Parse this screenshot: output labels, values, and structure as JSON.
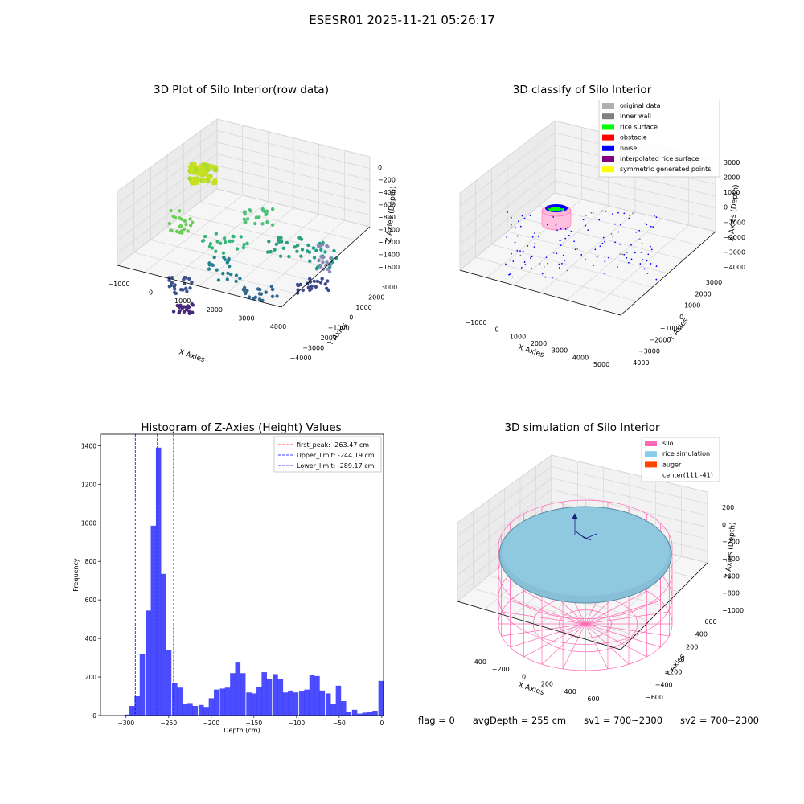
{
  "suptitle": "ESESR01 2025-11-21 05:26:17",
  "panels": {
    "raw": {
      "title": "3D Plot of Silo Interior(row data)",
      "xlabel": "X Axies",
      "ylabel": "Y Axies",
      "zlabel": "Z Axies (Depth)",
      "xticks": [
        "−1000",
        "0",
        "1000",
        "2000",
        "3000",
        "4000"
      ],
      "yticks": [
        "3000",
        "2000",
        "1000",
        "0",
        "−1000",
        "−2000",
        "−3000",
        "−4000"
      ],
      "zticks": [
        "0",
        "−200",
        "−400",
        "−600",
        "−800",
        "−1000",
        "−1200",
        "−1400",
        "−1600"
      ]
    },
    "classify": {
      "title": "3D classify of Silo Interior",
      "xlabel": "X Axies",
      "ylabel": "Y Axies",
      "zlabel": "Z Axies (Depth)",
      "xticks": [
        "−1000",
        "0",
        "1000",
        "2000",
        "3000",
        "4000",
        "5000"
      ],
      "yticks": [
        "3000",
        "2000",
        "1000",
        "0",
        "−1000",
        "−2000",
        "−3000",
        "−4000"
      ],
      "zticks": [
        "3000",
        "2000",
        "1000",
        "0",
        "−1000",
        "−2000",
        "−3000",
        "−4000"
      ],
      "legend": [
        {
          "label": "original data",
          "color": "#b0b0b0"
        },
        {
          "label": "inner wall",
          "color": "#808080"
        },
        {
          "label": "rice surface",
          "color": "#00ff00"
        },
        {
          "label": "obstacle",
          "color": "#ff0000"
        },
        {
          "label": "noise",
          "color": "#0000ff"
        },
        {
          "label": "interpolated rice surface",
          "color": "#800080"
        },
        {
          "label": "symmetric generated points",
          "color": "#ffff00"
        }
      ]
    },
    "simulation": {
      "title": "3D simulation of Silo Interior",
      "xlabel": "X Axies",
      "ylabel": "Y Axies",
      "zlabel": "Z Axies (Depth)",
      "xticks": [
        "−400",
        "−200",
        "0",
        "200",
        "400",
        "600"
      ],
      "yticks": [
        "600",
        "400",
        "200",
        "0",
        "−200",
        "−400",
        "−600"
      ],
      "zticks": [
        "200",
        "0",
        "−200",
        "−400",
        "−600",
        "−800",
        "−1000"
      ],
      "legend": [
        {
          "label": "silo",
          "color": "#ff69b4"
        },
        {
          "label": "rice simulation",
          "color": "#87ceeb"
        },
        {
          "label": "auger",
          "color": "#ff4500"
        },
        {
          "label": "center(111,-41)",
          "color": ""
        }
      ]
    }
  },
  "chart_data": [
    {
      "type": "bar",
      "title": "Histogram of Z-Axies (Height) Values",
      "xlabel": "Depth (cm)",
      "ylabel": "Frequency",
      "color": "#0000ff",
      "xlim": [
        -330,
        2
      ],
      "ylim": [
        0,
        1460
      ],
      "xticks": [
        -300,
        -250,
        -200,
        -150,
        -100,
        -50,
        0
      ],
      "yticks": [
        0,
        200,
        400,
        600,
        800,
        1000,
        1200,
        1400
      ],
      "bin_width": 6.2,
      "bins": [
        {
          "x": -302,
          "v": 5
        },
        {
          "x": -296,
          "v": 50
        },
        {
          "x": -290,
          "v": 100
        },
        {
          "x": -284,
          "v": 320
        },
        {
          "x": -277,
          "v": 545
        },
        {
          "x": -271,
          "v": 985
        },
        {
          "x": -265,
          "v": 1390
        },
        {
          "x": -259,
          "v": 735
        },
        {
          "x": -253,
          "v": 340
        },
        {
          "x": -246,
          "v": 170
        },
        {
          "x": -240,
          "v": 145
        },
        {
          "x": -234,
          "v": 60
        },
        {
          "x": -228,
          "v": 65
        },
        {
          "x": -222,
          "v": 50
        },
        {
          "x": -215,
          "v": 55
        },
        {
          "x": -209,
          "v": 45
        },
        {
          "x": -203,
          "v": 90
        },
        {
          "x": -197,
          "v": 135
        },
        {
          "x": -190,
          "v": 140
        },
        {
          "x": -184,
          "v": 145
        },
        {
          "x": -178,
          "v": 220
        },
        {
          "x": -172,
          "v": 275
        },
        {
          "x": -166,
          "v": 220
        },
        {
          "x": -159,
          "v": 120
        },
        {
          "x": -153,
          "v": 115
        },
        {
          "x": -147,
          "v": 150
        },
        {
          "x": -141,
          "v": 225
        },
        {
          "x": -135,
          "v": 190
        },
        {
          "x": -128,
          "v": 215
        },
        {
          "x": -122,
          "v": 190
        },
        {
          "x": -116,
          "v": 120
        },
        {
          "x": -110,
          "v": 130
        },
        {
          "x": -104,
          "v": 120
        },
        {
          "x": -97,
          "v": 125
        },
        {
          "x": -91,
          "v": 135
        },
        {
          "x": -85,
          "v": 210
        },
        {
          "x": -79,
          "v": 205
        },
        {
          "x": -73,
          "v": 130
        },
        {
          "x": -66,
          "v": 115
        },
        {
          "x": -60,
          "v": 60
        },
        {
          "x": -54,
          "v": 155
        },
        {
          "x": -48,
          "v": 75
        },
        {
          "x": -42,
          "v": 20
        },
        {
          "x": -35,
          "v": 30
        },
        {
          "x": -29,
          "v": 10
        },
        {
          "x": -23,
          "v": 15
        },
        {
          "x": -17,
          "v": 20
        },
        {
          "x": -11,
          "v": 25
        },
        {
          "x": -4,
          "v": 180
        }
      ],
      "vlines": [
        {
          "label": "first_peak: -263.47 cm",
          "value": -263.47,
          "color": "#ff0000"
        },
        {
          "label": "Upper_limit: -244.19 cm",
          "value": -244.19,
          "color": "#0000ff"
        },
        {
          "label": "Lower_limit: -289.17 cm",
          "value": -289.17,
          "color": "#0000ff"
        }
      ]
    }
  ],
  "footer": {
    "flag": "flag = 0",
    "avg": "avgDepth = 255 cm",
    "sv1": "sv1 = 700~2300",
    "sv2": "sv2 = 700~2300"
  }
}
